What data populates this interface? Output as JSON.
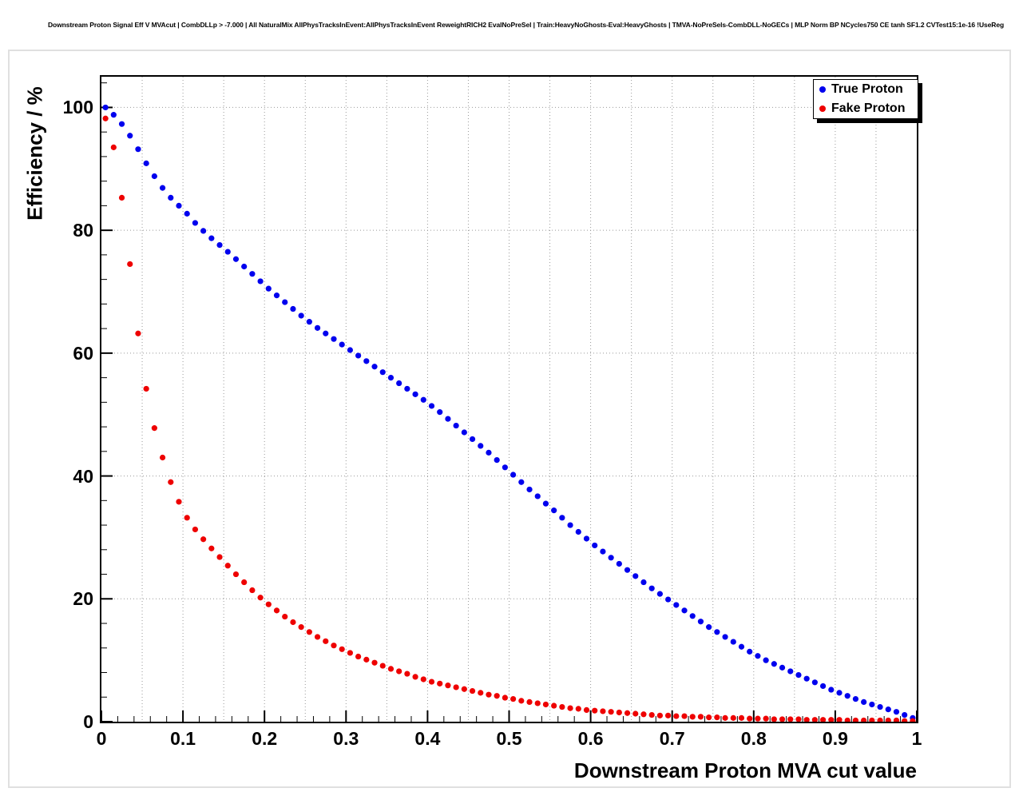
{
  "title": "Downstream Proton Signal Eff V MVAcut | CombDLLp > -7.000 | All NaturalMix AllPhysTracksInEvent:AllPhysTracksInEvent ReweightRICH2 EvalNoPreSel | Train:HeavyNoGhosts-Eval:HeavyGhosts | TMVA-NoPreSels-CombDLL-NoGECs | MLP Norm BP NCycles750 CE tanh SF1.2 CVTest15:1e-16 !UseReg",
  "axes": {
    "x_label": "Downstream Proton MVA cut value",
    "y_label": "Efficiency / %",
    "x_ticks": [
      "0",
      "0.1",
      "0.2",
      "0.3",
      "0.4",
      "0.5",
      "0.6",
      "0.7",
      "0.8",
      "0.9",
      "1"
    ],
    "y_ticks": [
      "0",
      "20",
      "40",
      "60",
      "80",
      "100"
    ]
  },
  "legend": [
    {
      "label": "True Proton",
      "color": "#0000ee"
    },
    {
      "label": "Fake Proton",
      "color": "#ee0000"
    }
  ],
  "colors": {
    "grid": "#999999",
    "frame": "#000000",
    "background": "#ffffff"
  },
  "chart_data": {
    "type": "scatter",
    "title": "Downstream Proton Signal Eff V MVAcut | CombDLLp > -7.000 | All NaturalMix AllPhysTracksInEvent:AllPhysTracksInEvent ReweightRICH2 EvalNoPreSel | Train:HeavyNoGhosts-Eval:HeavyGhosts | TMVA-NoPreSels-CombDLL-NoGECs | MLP Norm BP NCycles750 CE tanh SF1.2 CVTest15:1e-16 !UseReg",
    "xlabel": "Downstream Proton MVA cut value",
    "ylabel": "Efficiency / %",
    "xlim": [
      0,
      1
    ],
    "ylim": [
      0,
      105
    ],
    "grid": true,
    "grid_style": "dotted",
    "legend_position": "top-right",
    "marker": "filled-circle",
    "series": [
      {
        "name": "True Proton",
        "color": "#0000ee",
        "points": [
          [
            0.005,
            100.0
          ],
          [
            0.015,
            98.8
          ],
          [
            0.025,
            97.3
          ],
          [
            0.035,
            95.4
          ],
          [
            0.045,
            93.2
          ],
          [
            0.055,
            90.9
          ],
          [
            0.065,
            88.8
          ],
          [
            0.075,
            86.9
          ],
          [
            0.085,
            85.3
          ],
          [
            0.095,
            84.0
          ],
          [
            0.105,
            82.7
          ],
          [
            0.115,
            81.2
          ],
          [
            0.125,
            79.9
          ],
          [
            0.135,
            78.7
          ],
          [
            0.145,
            77.6
          ],
          [
            0.155,
            76.5
          ],
          [
            0.165,
            75.3
          ],
          [
            0.175,
            74.1
          ],
          [
            0.185,
            72.9
          ],
          [
            0.195,
            71.7
          ],
          [
            0.205,
            70.5
          ],
          [
            0.215,
            69.4
          ],
          [
            0.225,
            68.3
          ],
          [
            0.235,
            67.2
          ],
          [
            0.245,
            66.1
          ],
          [
            0.255,
            65.1
          ],
          [
            0.265,
            64.1
          ],
          [
            0.275,
            63.2
          ],
          [
            0.285,
            62.3
          ],
          [
            0.295,
            61.4
          ],
          [
            0.305,
            60.5
          ],
          [
            0.315,
            59.6
          ],
          [
            0.325,
            58.7
          ],
          [
            0.335,
            57.8
          ],
          [
            0.345,
            56.9
          ],
          [
            0.355,
            56.0
          ],
          [
            0.365,
            55.1
          ],
          [
            0.375,
            54.2
          ],
          [
            0.385,
            53.3
          ],
          [
            0.395,
            52.4
          ],
          [
            0.405,
            51.4
          ],
          [
            0.415,
            50.4
          ],
          [
            0.425,
            49.3
          ],
          [
            0.435,
            48.2
          ],
          [
            0.445,
            47.1
          ],
          [
            0.455,
            46.0
          ],
          [
            0.465,
            44.9
          ],
          [
            0.475,
            43.8
          ],
          [
            0.485,
            42.6
          ],
          [
            0.495,
            41.4
          ],
          [
            0.505,
            40.2
          ],
          [
            0.515,
            39.0
          ],
          [
            0.525,
            37.8
          ],
          [
            0.535,
            36.7
          ],
          [
            0.545,
            35.5
          ],
          [
            0.555,
            34.4
          ],
          [
            0.565,
            33.2
          ],
          [
            0.575,
            32.0
          ],
          [
            0.585,
            30.9
          ],
          [
            0.595,
            29.8
          ],
          [
            0.605,
            28.7
          ],
          [
            0.615,
            27.7
          ],
          [
            0.625,
            26.7
          ],
          [
            0.635,
            25.7
          ],
          [
            0.645,
            24.7
          ],
          [
            0.655,
            23.7
          ],
          [
            0.665,
            22.7
          ],
          [
            0.675,
            21.7
          ],
          [
            0.685,
            20.8
          ],
          [
            0.695,
            19.9
          ],
          [
            0.705,
            19.0
          ],
          [
            0.715,
            18.1
          ],
          [
            0.725,
            17.2
          ],
          [
            0.735,
            16.3
          ],
          [
            0.745,
            15.4
          ],
          [
            0.755,
            14.6
          ],
          [
            0.765,
            13.8
          ],
          [
            0.775,
            13.0
          ],
          [
            0.785,
            12.2
          ],
          [
            0.795,
            11.4
          ],
          [
            0.805,
            10.7
          ],
          [
            0.815,
            10.0
          ],
          [
            0.825,
            9.4
          ],
          [
            0.835,
            8.8
          ],
          [
            0.845,
            8.2
          ],
          [
            0.855,
            7.6
          ],
          [
            0.865,
            7.0
          ],
          [
            0.875,
            6.4
          ],
          [
            0.885,
            5.8
          ],
          [
            0.895,
            5.2
          ],
          [
            0.905,
            4.7
          ],
          [
            0.915,
            4.2
          ],
          [
            0.925,
            3.7
          ],
          [
            0.935,
            3.2
          ],
          [
            0.945,
            2.8
          ],
          [
            0.955,
            2.4
          ],
          [
            0.965,
            2.0
          ],
          [
            0.975,
            1.6
          ],
          [
            0.985,
            1.1
          ],
          [
            0.995,
            0.6
          ]
        ]
      },
      {
        "name": "Fake Proton",
        "color": "#ee0000",
        "points": [
          [
            0.005,
            98.2
          ],
          [
            0.015,
            93.5
          ],
          [
            0.025,
            85.3
          ],
          [
            0.035,
            74.5
          ],
          [
            0.045,
            63.2
          ],
          [
            0.055,
            54.2
          ],
          [
            0.065,
            47.8
          ],
          [
            0.075,
            43.0
          ],
          [
            0.085,
            39.0
          ],
          [
            0.095,
            35.8
          ],
          [
            0.105,
            33.2
          ],
          [
            0.115,
            31.3
          ],
          [
            0.125,
            29.7
          ],
          [
            0.135,
            28.2
          ],
          [
            0.145,
            26.8
          ],
          [
            0.155,
            25.4
          ],
          [
            0.165,
            24.0
          ],
          [
            0.175,
            22.7
          ],
          [
            0.185,
            21.4
          ],
          [
            0.195,
            20.2
          ],
          [
            0.205,
            19.1
          ],
          [
            0.215,
            18.1
          ],
          [
            0.225,
            17.1
          ],
          [
            0.235,
            16.2
          ],
          [
            0.245,
            15.4
          ],
          [
            0.255,
            14.6
          ],
          [
            0.265,
            13.8
          ],
          [
            0.275,
            13.1
          ],
          [
            0.285,
            12.4
          ],
          [
            0.295,
            11.8
          ],
          [
            0.305,
            11.2
          ],
          [
            0.315,
            10.6
          ],
          [
            0.325,
            10.1
          ],
          [
            0.335,
            9.6
          ],
          [
            0.345,
            9.1
          ],
          [
            0.355,
            8.6
          ],
          [
            0.365,
            8.2
          ],
          [
            0.375,
            7.8
          ],
          [
            0.385,
            7.3
          ],
          [
            0.395,
            6.9
          ],
          [
            0.405,
            6.5
          ],
          [
            0.415,
            6.2
          ],
          [
            0.425,
            5.9
          ],
          [
            0.435,
            5.6
          ],
          [
            0.445,
            5.3
          ],
          [
            0.455,
            5.0
          ],
          [
            0.465,
            4.7
          ],
          [
            0.475,
            4.4
          ],
          [
            0.485,
            4.2
          ],
          [
            0.495,
            3.9
          ],
          [
            0.505,
            3.7
          ],
          [
            0.515,
            3.4
          ],
          [
            0.525,
            3.2
          ],
          [
            0.535,
            3.0
          ],
          [
            0.545,
            2.8
          ],
          [
            0.555,
            2.6
          ],
          [
            0.565,
            2.4
          ],
          [
            0.575,
            2.2
          ],
          [
            0.585,
            2.1
          ],
          [
            0.595,
            1.9
          ],
          [
            0.605,
            1.8
          ],
          [
            0.615,
            1.7
          ],
          [
            0.625,
            1.6
          ],
          [
            0.635,
            1.5
          ],
          [
            0.645,
            1.4
          ],
          [
            0.655,
            1.3
          ],
          [
            0.665,
            1.2
          ],
          [
            0.675,
            1.1
          ],
          [
            0.685,
            1.0
          ],
          [
            0.695,
            1.0
          ],
          [
            0.705,
            0.9
          ],
          [
            0.715,
            0.9
          ],
          [
            0.725,
            0.8
          ],
          [
            0.735,
            0.8
          ],
          [
            0.745,
            0.7
          ],
          [
            0.755,
            0.7
          ],
          [
            0.765,
            0.6
          ],
          [
            0.775,
            0.6
          ],
          [
            0.785,
            0.6
          ],
          [
            0.795,
            0.5
          ],
          [
            0.805,
            0.5
          ],
          [
            0.815,
            0.5
          ],
          [
            0.825,
            0.4
          ],
          [
            0.835,
            0.4
          ],
          [
            0.845,
            0.4
          ],
          [
            0.855,
            0.4
          ],
          [
            0.865,
            0.3
          ],
          [
            0.875,
            0.3
          ],
          [
            0.885,
            0.3
          ],
          [
            0.895,
            0.3
          ],
          [
            0.905,
            0.3
          ],
          [
            0.915,
            0.2
          ],
          [
            0.925,
            0.2
          ],
          [
            0.935,
            0.2
          ],
          [
            0.945,
            0.2
          ],
          [
            0.955,
            0.2
          ],
          [
            0.965,
            0.2
          ],
          [
            0.975,
            0.2
          ],
          [
            0.985,
            0.1
          ],
          [
            0.995,
            0.1
          ]
        ]
      }
    ]
  }
}
